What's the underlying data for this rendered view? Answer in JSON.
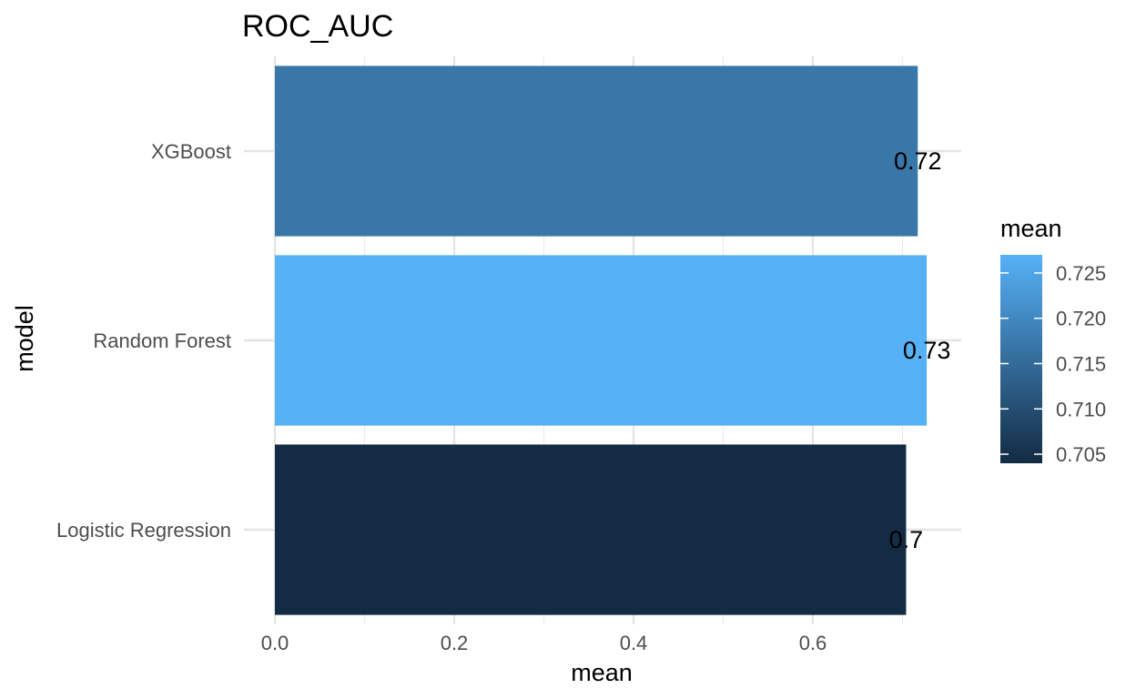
{
  "chart_data": {
    "type": "bar",
    "orientation": "horizontal",
    "title": "ROC_AUC",
    "xlabel": "mean",
    "ylabel": "model",
    "categories": [
      "Logistic Regression",
      "Random Forest",
      "XGBoost"
    ],
    "values": [
      0.704,
      0.727,
      0.717
    ],
    "data_labels": [
      "0.7",
      "0.73",
      "0.72"
    ],
    "xlim": [
      0,
      0.76
    ],
    "x_ticks": [
      0.0,
      0.2,
      0.4,
      0.6
    ],
    "x_tick_labels": [
      "0.0",
      "0.2",
      "0.4",
      "0.6"
    ],
    "grid": true,
    "legend": {
      "title": "mean",
      "type": "colorbar",
      "placement": "right",
      "range": [
        0.704,
        0.727
      ],
      "ticks": [
        0.705,
        0.71,
        0.715,
        0.72,
        0.725
      ],
      "tick_labels": [
        "0.705",
        "0.710",
        "0.715",
        "0.720",
        "0.725"
      ],
      "color_low": "#132B43",
      "color_high": "#56B1F7"
    }
  }
}
